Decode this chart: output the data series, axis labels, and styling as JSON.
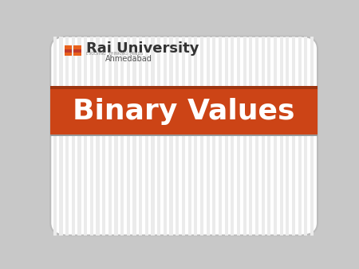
{
  "title": "Binary Values",
  "university_name": "Rai University",
  "university_sub": "Ahmedabad",
  "slide_bg": "#ffffff",
  "banner_color": "#cc4416",
  "banner_top_line_color": "#9e3510",
  "title_color": "#ffffff",
  "title_fontsize": 26,
  "logo_orange": "#e8601c",
  "logo_dark": "#c0392b",
  "univ_name_color": "#333333",
  "univ_sub_color": "#555555",
  "outer_bg": "#c8c8c8",
  "tagline": "EVOLVING  THINKING  MINDS"
}
